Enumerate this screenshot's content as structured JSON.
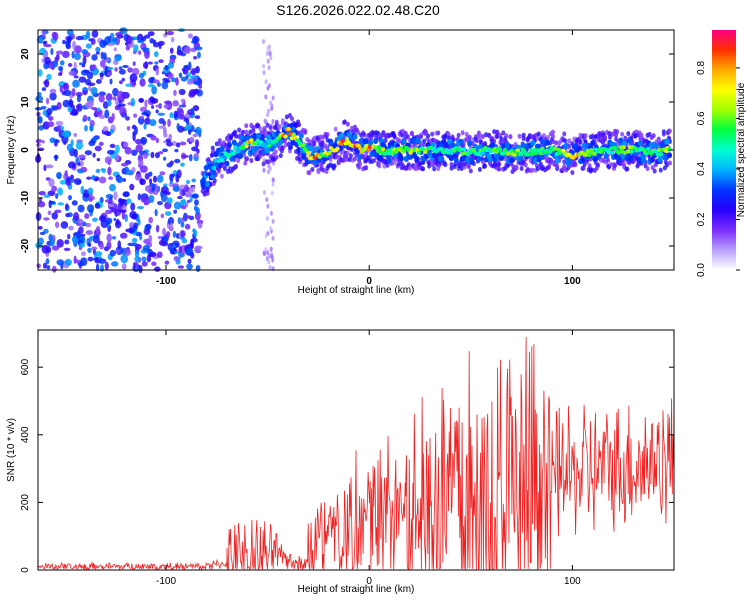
{
  "figure": {
    "title": "S126.2026.022.02.48.C20"
  },
  "chart_data": [
    {
      "type": "heatmap",
      "xlabel": "Height of straight line (km)",
      "ylabel": "Frequency (Hz)",
      "xlim": [
        -163,
        150
      ],
      "ylim": [
        -25,
        25
      ],
      "xticks": [
        -100,
        0,
        100
      ],
      "yticks": [
        -20,
        -10,
        0,
        10,
        20
      ],
      "colorbar": {
        "label": "Normalized spectral amplitude",
        "range": [
          0,
          0.95
        ],
        "ticks": [
          0.0,
          0.2,
          0.4,
          0.6,
          0.8
        ],
        "colormap": [
          "#ffffff",
          "#b8a0ff",
          "#7b2cff",
          "#2600ff",
          "#0033ff",
          "#00b4ff",
          "#00ffd0",
          "#00ff40",
          "#a0ff00",
          "#ffff00",
          "#ffaa00",
          "#ff3000",
          "#ff0080"
        ]
      },
      "ridge": {
        "x": [
          -82,
          -78,
          -74,
          -70,
          -66,
          -62,
          -58,
          -55,
          -52,
          -48,
          -45,
          -42,
          -40,
          -38,
          -35,
          -32,
          -30,
          -27,
          -24,
          -21,
          -18,
          -15,
          -12,
          -9,
          -6,
          -3,
          0,
          5,
          10,
          15,
          20,
          30,
          40,
          50,
          60,
          70,
          80,
          90,
          100,
          110,
          120,
          130,
          140,
          148
        ],
        "y": [
          -7,
          -4,
          -2,
          -1,
          0,
          1,
          1.5,
          2,
          1,
          1.5,
          2.5,
          3,
          4,
          3,
          2,
          0.5,
          -1,
          -1.5,
          -1,
          -0.5,
          0,
          1,
          2,
          1.5,
          0.5,
          0,
          0.5,
          0,
          -0.5,
          0,
          0,
          0,
          0,
          -0.5,
          0,
          -0.5,
          -0.5,
          0,
          -1,
          -0.5,
          0,
          0,
          -0.5,
          0
        ],
        "amplitude": [
          0.35,
          0.4,
          0.45,
          0.5,
          0.5,
          0.55,
          0.9,
          0.5,
          0.5,
          0.55,
          0.6,
          0.85,
          0.9,
          0.85,
          0.6,
          0.6,
          0.65,
          0.9,
          0.7,
          0.7,
          0.75,
          0.8,
          0.9,
          0.8,
          0.9,
          0.8,
          0.95,
          0.7,
          0.6,
          0.7,
          0.75,
          0.6,
          0.55,
          0.6,
          0.55,
          0.65,
          0.6,
          0.55,
          0.85,
          0.6,
          0.6,
          0.65,
          0.6,
          0.7
        ]
      },
      "noise_region": {
        "x_range": [
          -163,
          -83
        ],
        "y_range": [
          -25,
          25
        ],
        "amplitude_range": [
          0.1,
          0.4
        ]
      },
      "stripe": {
        "x_range": [
          -52,
          -47
        ],
        "y_range": [
          -25,
          25
        ],
        "amplitude_range": [
          0.05,
          0.12
        ]
      }
    },
    {
      "type": "line",
      "xlabel": "Height of straight line (km)",
      "ylabel": "SNR (10 * v/v)",
      "xlim": [
        -163,
        150
      ],
      "ylim": [
        0,
        710
      ],
      "xticks": [
        -100,
        0,
        100
      ],
      "yticks": [
        0,
        200,
        400,
        600
      ],
      "series": [
        {
          "color": "#ee2222",
          "segments": [
            {
              "x_range": [
                -163,
                -83
              ],
              "baseline": [
                10,
                10
              ],
              "spread": 12
            },
            {
              "x_range": [
                -83,
                -70
              ],
              "baseline": [
                10,
                20
              ],
              "spread": 15
            },
            {
              "x_range": [
                -70,
                -45
              ],
              "baseline": [
                40,
                50
              ],
              "spread": 110
            },
            {
              "x_range": [
                -45,
                -30
              ],
              "baseline": [
                40,
                10
              ],
              "spread": 40
            },
            {
              "x_range": [
                -30,
                -10
              ],
              "baseline": [
                60,
                120
              ],
              "spread": 180
            },
            {
              "x_range": [
                -10,
                18
              ],
              "baseline": [
                130,
                200
              ],
              "spread": 240
            },
            {
              "x_range": [
                18,
                45
              ],
              "baseline": [
                150,
                250
              ],
              "spread": 420
            },
            {
              "x_range": [
                45,
                90
              ],
              "baseline": [
                150,
                230
              ],
              "spread": 520
            },
            {
              "x_range": [
                90,
                150
              ],
              "baseline": [
                280,
                330
              ],
              "spread": 200
            }
          ]
        }
      ]
    }
  ]
}
